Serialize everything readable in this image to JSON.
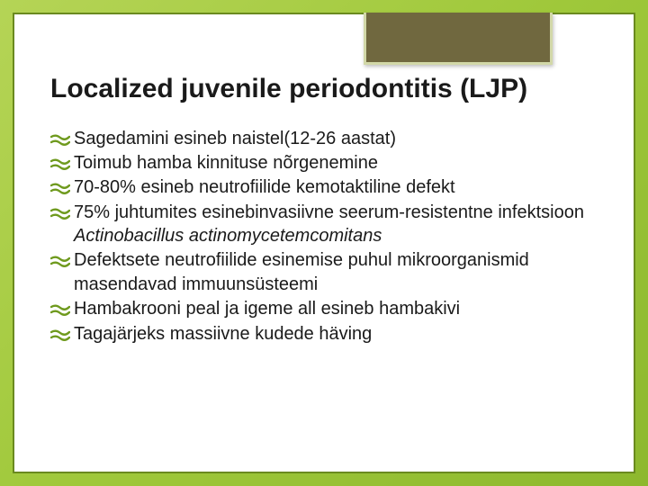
{
  "slide": {
    "background_gradient": [
      "#b5d456",
      "#9fc83a",
      "#8db82e"
    ],
    "panel_border": "#6a8a1f",
    "accent_box": {
      "fill": "#70683f",
      "border": "#d2d8a8"
    },
    "bullet_color": "#6f9a1e",
    "title_fontsize": 30,
    "body_fontsize": 20,
    "title": "Localized juvenile periodontitis (LJP)",
    "items": [
      {
        "text": "Sagedamini esineb naistel(12-26 aastat)"
      },
      {
        "text": "Toimub hamba kinnituse nõrgenemine"
      },
      {
        "text": "70-80% esineb neutrofiilide kemotaktiline defekt"
      },
      {
        "text": "75% juhtumites esinebinvasiivne seerum-resistentne infektsioon ",
        "italic_suffix": "Actinobacillus  actinomycetemcomitans"
      },
      {
        "text": "Defektsete neutrofiilide esinemise puhul mikroorganismid masendavad immuunsüsteemi"
      },
      {
        "text": "Hambakrooni peal ja igeme all esineb hambakivi"
      },
      {
        "text": "Tagajärjeks massiivne kudede häving"
      }
    ]
  }
}
